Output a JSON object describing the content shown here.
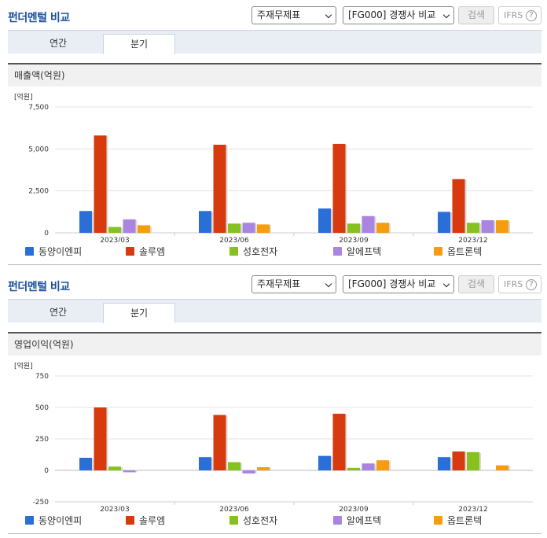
{
  "colors": {
    "series": [
      "#2a6ed8",
      "#d83a10",
      "#86c11f",
      "#a985e0",
      "#f59d0f"
    ]
  },
  "panels": [
    {
      "title": "펀더멘털 비교",
      "select_report": "주재무제표",
      "select_compare": "[FG000] 경쟁사 비교",
      "search_label": "검색",
      "ifrs_label": "IFRS",
      "help_label": "?",
      "tabs": [
        "연간",
        "분기"
      ],
      "active_tab": "분기",
      "section_title": "매출액(억원)",
      "chart_data": {
        "type": "bar",
        "unit_label": "[억원]",
        "categories": [
          "2023/03",
          "2023/06",
          "2023/09",
          "2023/12"
        ],
        "ylim": [
          0,
          7500
        ],
        "yticks": [
          0,
          2500,
          5000,
          7500
        ],
        "ytick_labels": [
          "0",
          "2,500",
          "5,000",
          "7,500"
        ],
        "series": [
          {
            "name": "동양이엔피",
            "values": [
              1300,
              1300,
              1450,
              1250
            ]
          },
          {
            "name": "솔루엠",
            "values": [
              5800,
              5250,
              5300,
              3200
            ]
          },
          {
            "name": "성호전자",
            "values": [
              350,
              550,
              550,
              600
            ]
          },
          {
            "name": "알에프텍",
            "values": [
              800,
              600,
              1000,
              750
            ]
          },
          {
            "name": "옵트론텍",
            "values": [
              450,
              500,
              600,
              750
            ]
          }
        ]
      }
    },
    {
      "title": "펀더멘털 비교",
      "select_report": "주재무제표",
      "select_compare": "[FG000] 경쟁사 비교",
      "search_label": "검색",
      "ifrs_label": "IFRS",
      "help_label": "?",
      "tabs": [
        "연간",
        "분기"
      ],
      "active_tab": "분기",
      "section_title": "영업이익(억원)",
      "chart_data": {
        "type": "bar",
        "unit_label": "[억원]",
        "categories": [
          "2023/03",
          "2023/06",
          "2023/09",
          "2023/12"
        ],
        "ylim": [
          -250,
          750
        ],
        "yticks": [
          -250,
          0,
          250,
          500,
          750
        ],
        "ytick_labels": [
          "-250",
          "0",
          "250",
          "500",
          "750"
        ],
        "series": [
          {
            "name": "동양이엔피",
            "values": [
              100,
              105,
              115,
              105
            ]
          },
          {
            "name": "솔루엠",
            "values": [
              500,
              440,
              450,
              150
            ]
          },
          {
            "name": "성호전자",
            "values": [
              30,
              65,
              20,
              145
            ]
          },
          {
            "name": "알에프텍",
            "values": [
              -15,
              -25,
              55,
              0
            ]
          },
          {
            "name": "옵트론텍",
            "values": [
              0,
              25,
              80,
              40
            ]
          }
        ]
      }
    }
  ]
}
